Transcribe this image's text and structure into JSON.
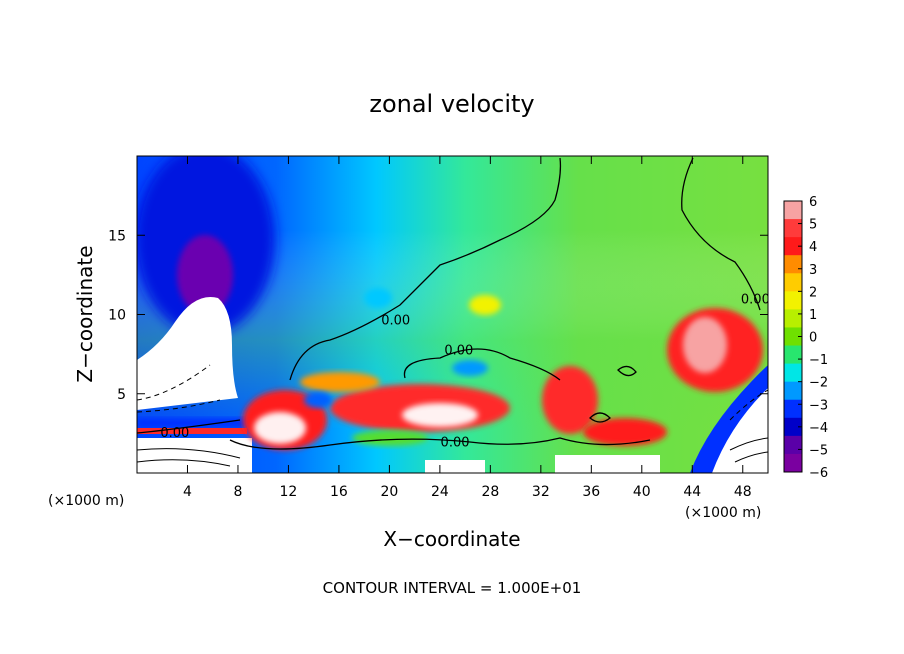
{
  "chart_data": {
    "type": "heatmap",
    "title": "zonal velocity",
    "xlabel": "X−coordinate",
    "ylabel": "Z−coordinate",
    "x_unit_left": "(×1000 m)",
    "x_unit_right": "(×1000 m)",
    "footer": "CONTOUR INTERVAL = 1.000E+01",
    "xlim": [
      0,
      50
    ],
    "ylim": [
      0,
      20
    ],
    "x_ticks": [
      4,
      8,
      12,
      16,
      20,
      24,
      28,
      32,
      36,
      40,
      44,
      48
    ],
    "x_tick_labels": [
      "4",
      "8",
      "12",
      "16",
      "20",
      "24",
      "28",
      "32",
      "36",
      "40",
      "44",
      "48"
    ],
    "y_ticks": [
      5,
      10,
      15
    ],
    "y_tick_labels": [
      "5",
      "10",
      "15"
    ],
    "colorbar": {
      "range": [
        -6,
        6
      ],
      "ticks": [
        6,
        5,
        4,
        3,
        2,
        1,
        0,
        -1,
        -2,
        -3,
        -4,
        -5,
        -6
      ],
      "tick_labels": [
        "6",
        "5",
        "4",
        "3",
        "2",
        "1",
        "0",
        "−1",
        "−2",
        "−3",
        "−4",
        "−5",
        "−6"
      ],
      "colors": [
        "#f7a3a3",
        "#ff3b3b",
        "#ff1a1a",
        "#ff8c00",
        "#ffcc00",
        "#f2f200",
        "#b8ef00",
        "#6fe000",
        "#28e66e",
        "#00e6e6",
        "#0099ff",
        "#0030ff",
        "#0000c8",
        "#5a00a8",
        "#7a00a0"
      ]
    },
    "contour_labels": [
      {
        "text": "0.00",
        "x": 3,
        "y": 2.6
      },
      {
        "text": "0.00",
        "x": 20.5,
        "y": 9.7
      },
      {
        "text": "0.00",
        "x": 25.5,
        "y": 7.8
      },
      {
        "text": "0.00",
        "x": 25.2,
        "y": 2.0
      },
      {
        "text": "0.00",
        "x": 49,
        "y": 11.0
      }
    ]
  }
}
